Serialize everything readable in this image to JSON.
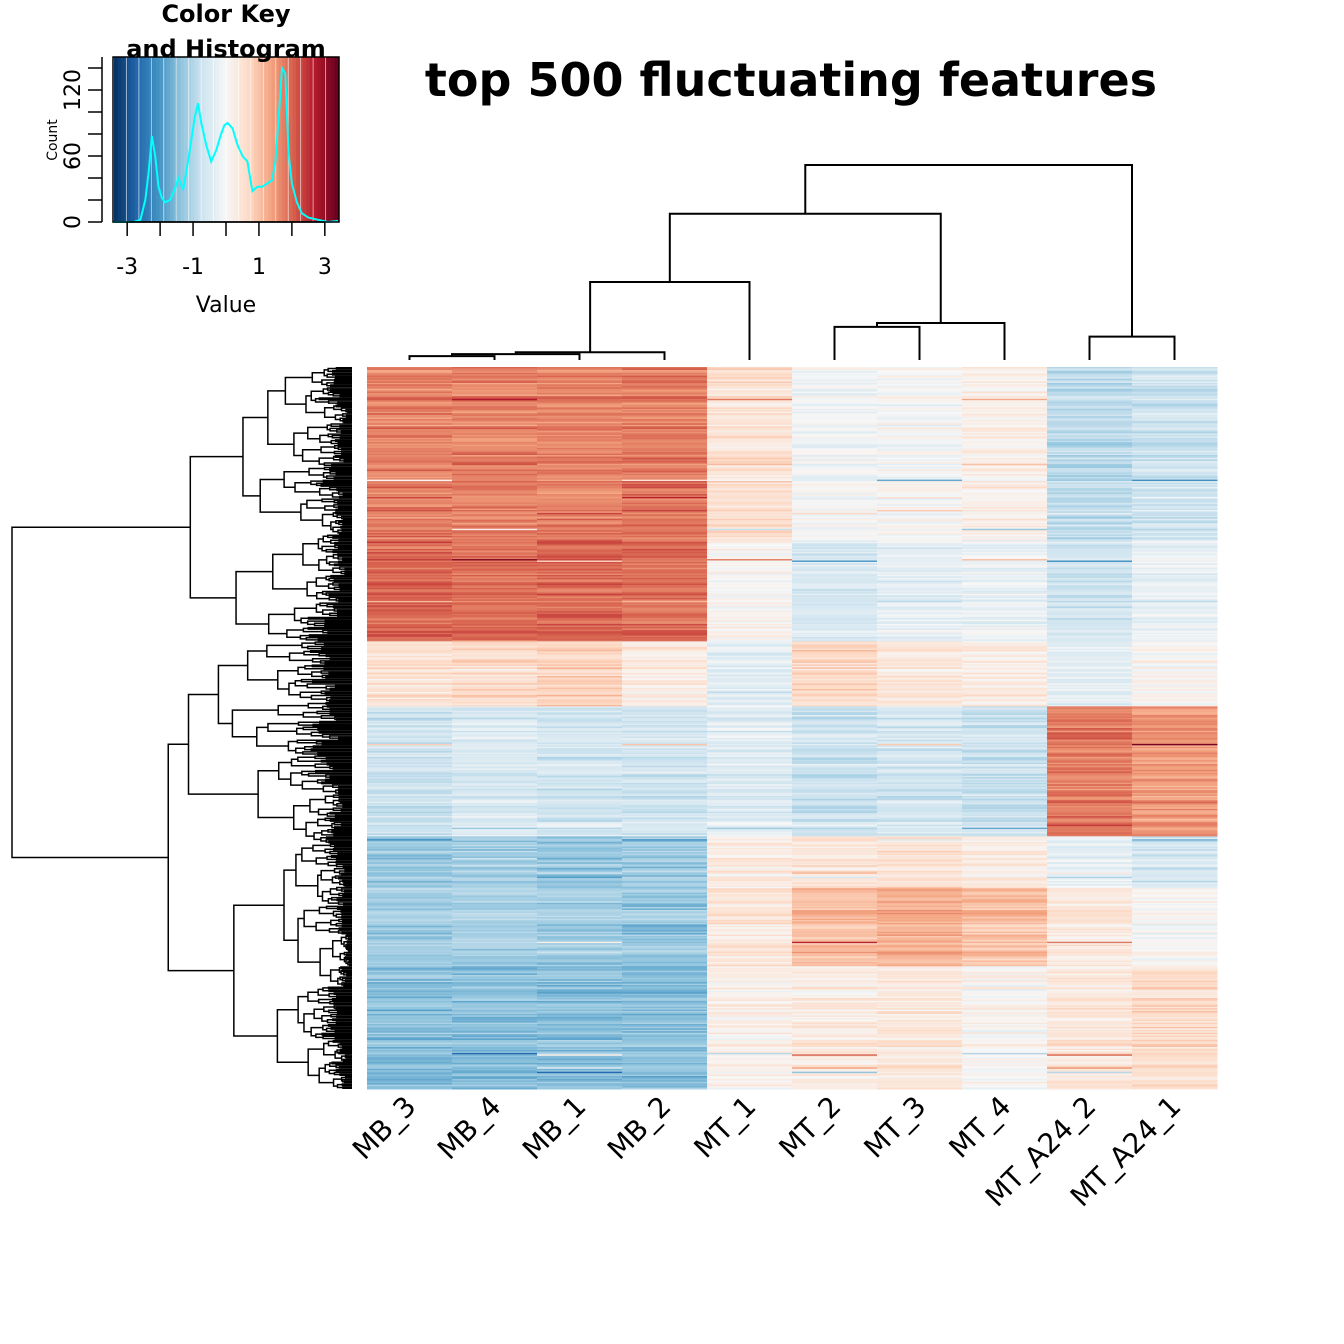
{
  "chart_data": {
    "type": "heatmap",
    "title": "top 500 fluctuating features",
    "columns": [
      "MB_3",
      "MB_4",
      "MB_1",
      "MB_2",
      "MT_1",
      "MT_2",
      "MT_3",
      "MT_4",
      "MT_A24_2",
      "MT_A24_1"
    ],
    "row_count": 500,
    "color_key": {
      "title_line1": "Color Key",
      "title_line2": "and Histogram",
      "xlabel": "Value",
      "ylabel": "Count",
      "x_ticks": [
        "-3",
        "-1",
        "1",
        "3"
      ],
      "y_ticks": [
        "0",
        "60",
        "120"
      ],
      "x_range": [
        -3.4,
        3.4
      ],
      "y_range": [
        0,
        150
      ],
      "palette": [
        "#053061",
        "#2166ac",
        "#4393c3",
        "#92c5de",
        "#d1e5f0",
        "#f7f7f7",
        "#fddbc7",
        "#f4a582",
        "#d6604d",
        "#b2182b",
        "#67001f"
      ],
      "histogram_color": "#00ffff",
      "histogram": [
        [
          -3.4,
          0
        ],
        [
          -2.8,
          0
        ],
        [
          -2.6,
          2
        ],
        [
          -2.45,
          20
        ],
        [
          -2.35,
          45
        ],
        [
          -2.25,
          78
        ],
        [
          -2.15,
          60
        ],
        [
          -2.05,
          32
        ],
        [
          -1.95,
          22
        ],
        [
          -1.85,
          18
        ],
        [
          -1.7,
          20
        ],
        [
          -1.55,
          30
        ],
        [
          -1.45,
          40
        ],
        [
          -1.3,
          30
        ],
        [
          -1.15,
          55
        ],
        [
          -1.05,
          75
        ],
        [
          -0.95,
          95
        ],
        [
          -0.85,
          108
        ],
        [
          -0.75,
          90
        ],
        [
          -0.6,
          70
        ],
        [
          -0.45,
          55
        ],
        [
          -0.3,
          65
        ],
        [
          -0.15,
          80
        ],
        [
          -0.05,
          88
        ],
        [
          0.05,
          90
        ],
        [
          0.2,
          85
        ],
        [
          0.35,
          70
        ],
        [
          0.5,
          60
        ],
        [
          0.65,
          55
        ],
        [
          0.8,
          28
        ],
        [
          0.95,
          32
        ],
        [
          1.1,
          32
        ],
        [
          1.25,
          35
        ],
        [
          1.4,
          38
        ],
        [
          1.5,
          55
        ],
        [
          1.6,
          95
        ],
        [
          1.7,
          140
        ],
        [
          1.8,
          135
        ],
        [
          1.9,
          62
        ],
        [
          2.0,
          35
        ],
        [
          2.15,
          18
        ],
        [
          2.3,
          8
        ],
        [
          2.5,
          4
        ],
        [
          2.8,
          2
        ],
        [
          3.1,
          0
        ],
        [
          3.4,
          1
        ]
      ]
    }
  }
}
